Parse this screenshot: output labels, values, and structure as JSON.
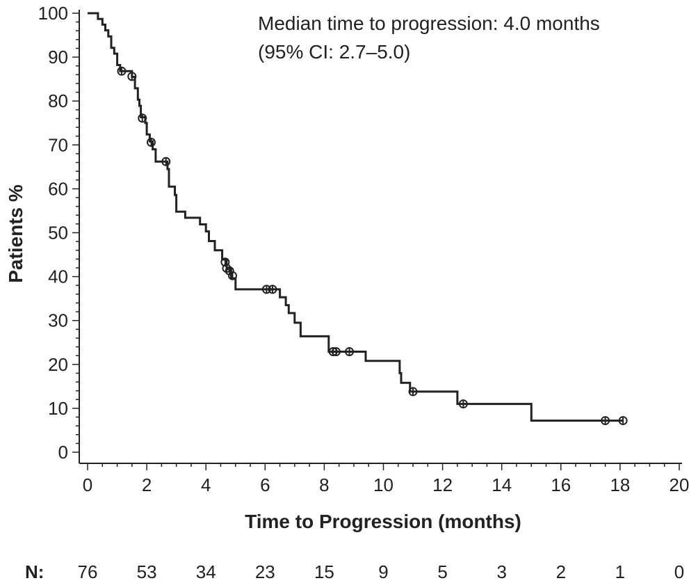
{
  "chart_data": {
    "type": "line",
    "subtype": "kaplan-meier",
    "title": "",
    "xlabel": "Time to Progression (months)",
    "ylabel": "Patients %",
    "xlim": [
      0,
      20
    ],
    "ylim": [
      0,
      100
    ],
    "x_ticks": [
      0,
      2,
      4,
      6,
      8,
      10,
      12,
      14,
      16,
      18,
      20
    ],
    "y_ticks": [
      0,
      10,
      20,
      30,
      40,
      50,
      60,
      70,
      80,
      90,
      100
    ],
    "grid": false,
    "annotation": {
      "line1": "Median time to progression: 4.0 months",
      "line2": "(95% CI: 2.7–5.0)"
    },
    "series": [
      {
        "steps": [
          [
            0,
            100
          ],
          [
            0.35,
            98.7
          ],
          [
            0.5,
            97.4
          ],
          [
            0.6,
            96.1
          ],
          [
            0.7,
            94.7
          ],
          [
            0.8,
            92.1
          ],
          [
            0.9,
            90.8
          ],
          [
            1.0,
            88.2
          ],
          [
            1.1,
            86.8
          ],
          [
            1.5,
            85.5
          ],
          [
            1.6,
            82.9
          ],
          [
            1.7,
            80.3
          ],
          [
            1.75,
            78.9
          ],
          [
            1.8,
            76.3
          ],
          [
            1.95,
            75.0
          ],
          [
            2.0,
            72.4
          ],
          [
            2.1,
            70.8
          ],
          [
            2.2,
            69.0
          ],
          [
            2.3,
            66.2
          ],
          [
            2.7,
            64.5
          ],
          [
            2.75,
            60.5
          ],
          [
            2.95,
            58.6
          ],
          [
            3.0,
            54.8
          ],
          [
            3.3,
            53.4
          ],
          [
            3.8,
            51.9
          ],
          [
            4.0,
            50.3
          ],
          [
            4.1,
            48.1
          ],
          [
            4.3,
            46.0
          ],
          [
            4.55,
            43.9
          ],
          [
            4.7,
            41.7
          ],
          [
            4.85,
            39.6
          ],
          [
            5.0,
            37.1
          ],
          [
            6.5,
            35.3
          ],
          [
            6.7,
            33.5
          ],
          [
            6.8,
            31.7
          ],
          [
            7.0,
            29.5
          ],
          [
            7.2,
            26.4
          ],
          [
            8.15,
            22.9
          ],
          [
            9.4,
            20.8
          ],
          [
            10.55,
            18.0
          ],
          [
            10.6,
            15.8
          ],
          [
            10.9,
            13.8
          ],
          [
            12.5,
            11.0
          ],
          [
            15.0,
            7.2
          ],
          [
            18.1,
            7.2
          ]
        ],
        "censored": [
          [
            1.15,
            86.8
          ],
          [
            1.5,
            85.6
          ],
          [
            1.85,
            76.1
          ],
          [
            2.15,
            70.6
          ],
          [
            2.65,
            66.2
          ],
          [
            4.65,
            43.3
          ],
          [
            4.7,
            41.9
          ],
          [
            4.8,
            41.3
          ],
          [
            4.9,
            40.2
          ],
          [
            6.05,
            37.1
          ],
          [
            6.25,
            37.1
          ],
          [
            8.3,
            22.9
          ],
          [
            8.4,
            22.9
          ],
          [
            8.85,
            22.9
          ],
          [
            11.0,
            13.8
          ],
          [
            12.7,
            11.0
          ],
          [
            17.5,
            7.2
          ],
          [
            18.1,
            7.2
          ]
        ]
      }
    ],
    "risk_table": {
      "label": "N:",
      "times": [
        0,
        2,
        4,
        6,
        8,
        10,
        12,
        14,
        16,
        18,
        20
      ],
      "counts": [
        "76",
        "53",
        "34",
        "23",
        "15",
        "9",
        "5",
        "3",
        "2",
        "1",
        "0"
      ]
    }
  }
}
